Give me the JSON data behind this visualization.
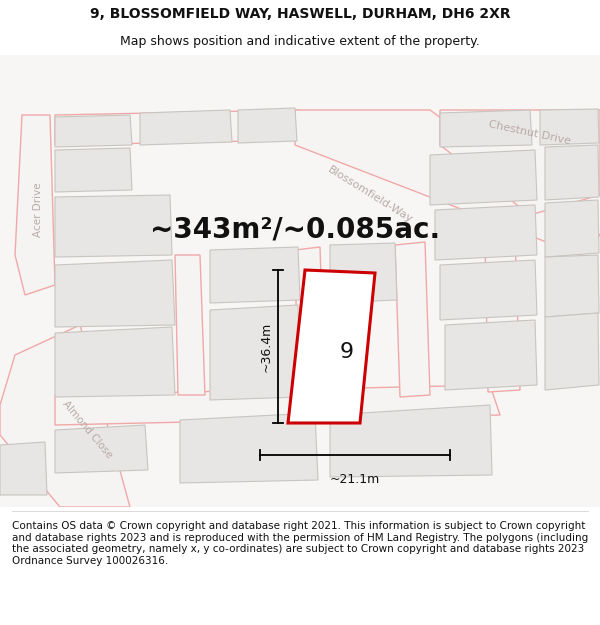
{
  "title_line1": "9, BLOSSOMFIELD WAY, HASWELL, DURHAM, DH6 2XR",
  "title_line2": "Map shows position and indicative extent of the property.",
  "area_text": "~343m²/~0.085ac.",
  "plot_number": "9",
  "dim_width": "~21.1m",
  "dim_height": "~36.4m",
  "footer_text": "Contains OS data © Crown copyright and database right 2021. This information is subject to Crown copyright and database rights 2023 and is reproduced with the permission of HM Land Registry. The polygons (including the associated geometry, namely x, y co-ordinates) are subject to Crown copyright and database rights 2023 Ordnance Survey 100026316.",
  "map_bg": "#f7f6f4",
  "road_line_color": "#f0a8a8",
  "road_fill_color": "#f8f8f8",
  "building_fc": "#e8e6e4",
  "building_ec": "#c8c4c0",
  "plot_fill": "#ffffff",
  "plot_edge": "#cc0000",
  "road_label_color": "#b8aaaa",
  "title_fontsize": 10,
  "subtitle_fontsize": 9,
  "area_fontsize": 20,
  "footer_fontsize": 7.5,
  "dim_fontsize": 9,
  "plot_label_fontsize": 16
}
